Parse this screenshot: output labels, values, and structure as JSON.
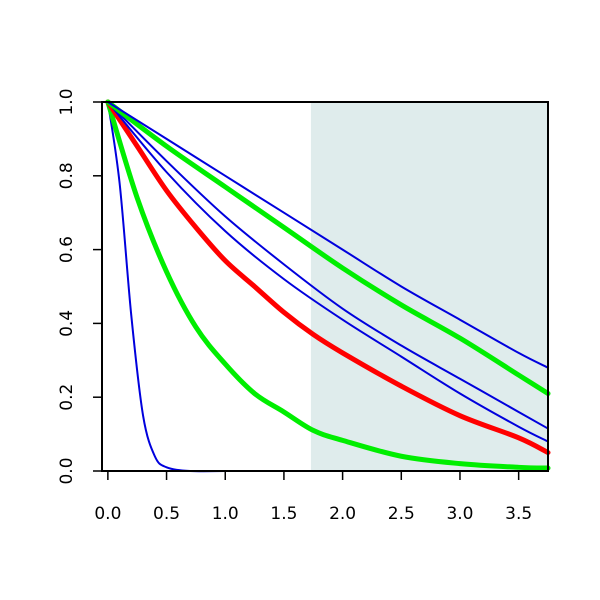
{
  "chart_data": {
    "type": "line",
    "title": "",
    "xlabel": "",
    "ylabel": "",
    "xlim": [
      -0.05,
      3.75
    ],
    "ylim": [
      0.0,
      1.0
    ],
    "x_ticks": [
      0.0,
      0.5,
      1.0,
      1.5,
      2.0,
      2.5,
      3.0,
      3.5
    ],
    "x_tick_labels": [
      "0.0",
      "0.5",
      "1.0",
      "1.5",
      "2.0",
      "2.5",
      "3.0",
      "3.5"
    ],
    "y_ticks": [
      0.0,
      0.2,
      0.4,
      0.6,
      0.8,
      1.0
    ],
    "y_tick_labels": [
      "0.0",
      "0.2",
      "0.4",
      "0.6",
      "0.8",
      "1.0"
    ],
    "grid": false,
    "shaded_region": {
      "x_from": 1.73,
      "x_to": 3.75,
      "color": "#dfecec"
    },
    "series": [
      {
        "color": "#0000dd",
        "stroke": "thin",
        "x": [
          0.0,
          0.1,
          0.2,
          0.3,
          0.4,
          0.5,
          0.7,
          1.0,
          2.0,
          3.75
        ],
        "y": [
          1.0,
          0.78,
          0.42,
          0.15,
          0.04,
          0.01,
          0.0,
          0.0,
          0.0,
          0.0
        ]
      },
      {
        "color": "#00ee00",
        "stroke": "thick",
        "x": [
          0.0,
          0.25,
          0.5,
          0.75,
          1.0,
          1.25,
          1.5,
          1.75,
          2.0,
          2.5,
          3.0,
          3.5,
          3.75
        ],
        "y": [
          1.0,
          0.74,
          0.54,
          0.39,
          0.29,
          0.21,
          0.16,
          0.11,
          0.083,
          0.04,
          0.02,
          0.01,
          0.008
        ]
      },
      {
        "color": "#ff0000",
        "stroke": "thick",
        "x": [
          0.0,
          0.25,
          0.5,
          0.75,
          1.0,
          1.25,
          1.5,
          1.75,
          2.0,
          2.5,
          3.0,
          3.5,
          3.75
        ],
        "y": [
          1.0,
          0.88,
          0.76,
          0.66,
          0.57,
          0.5,
          0.43,
          0.37,
          0.32,
          0.23,
          0.15,
          0.09,
          0.05
        ]
      },
      {
        "color": "#0000dd",
        "stroke": "thin",
        "x": [
          0.0,
          0.5,
          1.0,
          1.5,
          2.0,
          2.5,
          3.0,
          3.5,
          3.75
        ],
        "y": [
          1.0,
          0.81,
          0.65,
          0.52,
          0.41,
          0.31,
          0.21,
          0.12,
          0.08
        ]
      },
      {
        "color": "#0000dd",
        "stroke": "thin",
        "x": [
          0.0,
          0.5,
          1.0,
          1.5,
          2.0,
          2.5,
          3.0,
          3.5,
          3.75
        ],
        "y": [
          1.0,
          0.84,
          0.69,
          0.56,
          0.44,
          0.34,
          0.25,
          0.16,
          0.115
        ]
      },
      {
        "color": "#00ee00",
        "stroke": "thick",
        "x": [
          0.0,
          0.5,
          1.0,
          1.5,
          2.0,
          2.5,
          3.0,
          3.5,
          3.75
        ],
        "y": [
          1.0,
          0.88,
          0.77,
          0.66,
          0.55,
          0.45,
          0.36,
          0.26,
          0.21
        ]
      },
      {
        "color": "#0000dd",
        "stroke": "thin",
        "x": [
          0.0,
          0.5,
          1.0,
          1.5,
          2.0,
          2.5,
          3.0,
          3.5,
          3.75
        ],
        "y": [
          1.0,
          0.9,
          0.8,
          0.7,
          0.6,
          0.5,
          0.41,
          0.32,
          0.28
        ]
      }
    ]
  }
}
